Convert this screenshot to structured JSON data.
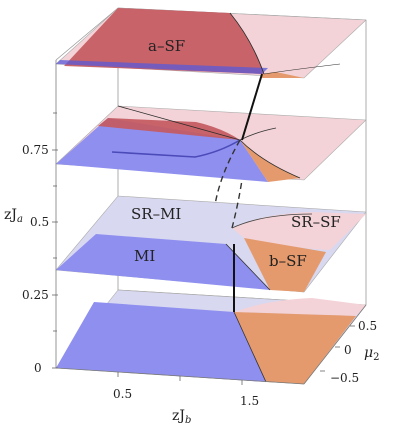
{
  "chart_data": {
    "type": "3d-phase-diagram",
    "colors": {
      "MI": "#8f8ff0",
      "SR-MI": "#d8d8f0",
      "a-SF": "#c45a60",
      "SR-SF": "#f3d3d8",
      "b-SF": "#e49a6c",
      "front_edge_band": "#5a5ad8",
      "boundary_line": "#222222"
    },
    "region_labels": {
      "a_sf": "a–SF",
      "sr_mi": "SR–MI",
      "sr_sf": "SR–SF",
      "mi": "MI",
      "b_sf": "b–SF"
    },
    "x_axis": {
      "title": "zJ",
      "title_subscript": "b",
      "ticks": [
        "0.5",
        "1.5"
      ],
      "tick_values": [
        0.5,
        1.5
      ],
      "range": [
        0,
        2
      ]
    },
    "y_axis": {
      "title": "μ",
      "title_subscript": "2",
      "ticks": [
        "0.5",
        "0",
        "−0.5"
      ],
      "tick_values": [
        0.5,
        0,
        -0.5
      ],
      "range": [
        -0.75,
        0.75
      ]
    },
    "z_axis": {
      "title": "zJ",
      "title_subscript": "a",
      "ticks": [
        "0",
        "0.25",
        "0.5",
        "0.75"
      ],
      "tick_values": [
        0,
        0.25,
        0.5,
        0.75
      ],
      "range": [
        0,
        1.0
      ]
    },
    "slices_zJa": [
      0,
      0.33,
      0.67,
      1.0
    ],
    "grid": false,
    "legend": "none"
  }
}
